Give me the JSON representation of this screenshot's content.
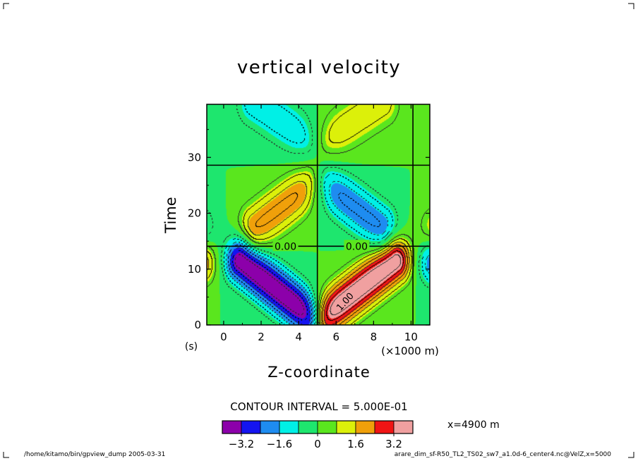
{
  "chart_data": {
    "type": "heatmap",
    "title": "vertical velocity",
    "xlabel": "Z-coordinate",
    "ylabel": "Time",
    "x_unit_label": "(×1000 m)",
    "y_unit_label": "(s)",
    "xlim": [
      -0.9,
      11
    ],
    "ylim": [
      0,
      39.5
    ],
    "x_ticks": [
      0,
      2,
      4,
      6,
      8,
      10
    ],
    "y_ticks": [
      0,
      10,
      20,
      30
    ],
    "contour_interval_text": "CONTOUR INTERVAL = 5.000E-01",
    "contour_line_labels": [
      "0.00",
      "0.00",
      "1.00"
    ],
    "zero_contour_labels": [
      {
        "text": "0.00",
        "x": 3.3,
        "y": 14.1
      },
      {
        "text": "0.00",
        "x": 7.1,
        "y": 14.1
      }
    ],
    "positive_contour_label": {
      "text": "1.00",
      "x": 6.6,
      "y": 3.8
    },
    "colorbar": {
      "boundaries": [
        -4.0,
        -3.2,
        -2.4,
        -1.6,
        -0.8,
        0,
        0.8,
        1.6,
        2.4,
        3.2,
        4.0
      ],
      "colors": [
        "#8c00aa",
        "#1414f0",
        "#1e8cf0",
        "#00f0e6",
        "#1ee66e",
        "#5ae61e",
        "#dcf00a",
        "#f0a00a",
        "#f01414",
        "#f0a0a0"
      ],
      "tick_labels": [
        "-3.2",
        "-1.6",
        "0",
        "1.6",
        "3.2"
      ],
      "tick_values": [
        -3.2,
        -1.6,
        0,
        1.6,
        3.2
      ]
    },
    "background_color": "#5ae61e",
    "blobs": [
      {
        "x1": 0.9,
        "y1": 11.5,
        "x2": 4.6,
        "y2": 1.6,
        "amp": -4.0,
        "w": 0.55
      },
      {
        "x1": 5.4,
        "y1": 1.6,
        "x2": 9.2,
        "y2": 11.5,
        "amp": 4.0,
        "w": 0.55
      },
      {
        "x1": 1.7,
        "y1": 17.5,
        "x2": 4.7,
        "y2": 25.2,
        "amp": 2.1,
        "w": 0.6
      },
      {
        "x1": 5.4,
        "y1": 25.2,
        "x2": 8.4,
        "y2": 17.5,
        "amp": -2.1,
        "w": 0.6
      },
      {
        "x1": 1.6,
        "y1": 39.8,
        "x2": 4.5,
        "y2": 33.2,
        "amp": -1.3,
        "w": 0.65
      },
      {
        "x1": 5.5,
        "y1": 33.2,
        "x2": 8.5,
        "y2": 39.8,
        "amp": 1.3,
        "w": 0.65
      },
      {
        "x1": -1.2,
        "y1": 11.2,
        "x2": -1.2,
        "y2": 11.2,
        "amp": 2.2,
        "w": 0.55
      },
      {
        "x1": -1.3,
        "y1": 17.2,
        "x2": -1.3,
        "y2": 17.2,
        "amp": -1.2,
        "w": 0.6
      },
      {
        "x1": 11.2,
        "y1": 11.2,
        "x2": 11.2,
        "y2": 11.2,
        "amp": -2.2,
        "w": 0.55
      },
      {
        "x1": 11.3,
        "y1": 17.2,
        "x2": 11.3,
        "y2": 17.2,
        "amp": 1.2,
        "w": 0.6
      }
    ],
    "zero_lines": [
      {
        "orientation": "horizontal",
        "value": 14.1
      },
      {
        "orientation": "horizontal",
        "value": 28.6
      },
      {
        "orientation": "vertical",
        "value": 5.0
      },
      {
        "orientation": "vertical",
        "value": 10.1
      }
    ]
  },
  "side_label": "x=4900 m",
  "footer": {
    "left": "/home/kitamo/bin/gpview_dump  2005-03-31",
    "right": "arare_dim_sf-R50_TL2_TS02_sw7_a1.0d-6_center4.nc@VelZ,x=5000"
  }
}
